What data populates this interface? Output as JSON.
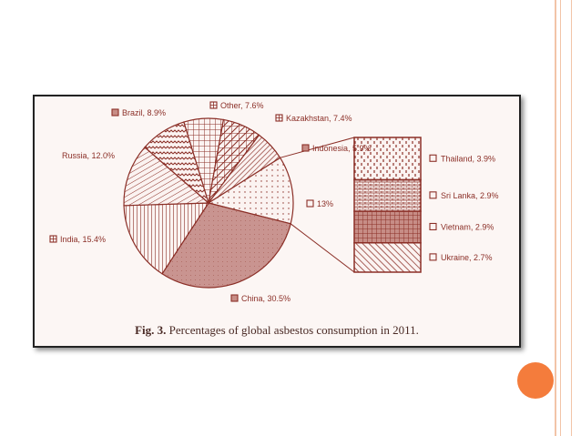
{
  "figure": {
    "caption_label": "Fig. 3.",
    "caption_text": "Percentages of global asbestos consumption in 2011."
  },
  "chart_data": {
    "type": "pie",
    "title": "Fig. 3. Percentages of global asbestos consumption in 2011.",
    "slices": [
      {
        "label": "China",
        "value": 30.5,
        "text": "China, 30.5%"
      },
      {
        "label": "India",
        "value": 15.4,
        "text": "India, 15.4%"
      },
      {
        "label": "Russia",
        "value": 12.0,
        "text": "Russia, 12.0%"
      },
      {
        "label": "Brazil",
        "value": 8.9,
        "text": "Brazil, 8.9%"
      },
      {
        "label": "Other",
        "value": 7.6,
        "text": "Other, 7.6%"
      },
      {
        "label": "Kazakhstan",
        "value": 7.4,
        "text": "Kazakhstan, 7.4%"
      },
      {
        "label": "Indonesia",
        "value": 5.9,
        "text": "Indonesia, 5.9%"
      },
      {
        "label": "",
        "value": 13,
        "text": "13%"
      }
    ],
    "breakdown": {
      "of": "13%",
      "items": [
        {
          "label": "Thailand",
          "value": 3.9,
          "text": "Thailand, 3.9%"
        },
        {
          "label": "Sri Lanka",
          "value": 2.9,
          "text": "Sri Lanka, 2.9%"
        },
        {
          "label": "Vietnam",
          "value": 2.9,
          "text": "Vietnam, 2.9%"
        },
        {
          "label": "Ukraine",
          "value": 2.7,
          "text": "Ukraine, 2.7%"
        }
      ]
    },
    "colors": {
      "stroke": "#8b2f27",
      "fill_light": "#f4e6e2",
      "fill_dark": "#c78d86"
    }
  }
}
